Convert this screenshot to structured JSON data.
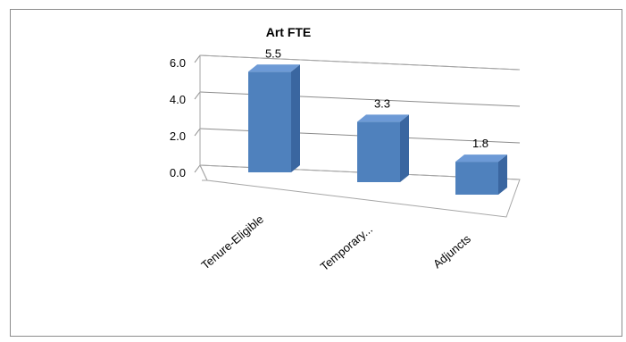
{
  "chart_data": {
    "type": "bar",
    "title": "Art FTE",
    "categories": [
      "Tenure-Eligible",
      "Temporary...",
      "Adjuncts"
    ],
    "values": [
      5.5,
      3.3,
      1.8
    ],
    "ylim": [
      0,
      6
    ],
    "yticks": [
      "0.0",
      "2.0",
      "4.0",
      "6.0"
    ],
    "data_labels": [
      "5.5",
      "3.3",
      "1.8"
    ],
    "grid": true,
    "legend": "none",
    "bar_color": "#4f81bd",
    "bar_side_color": "#3a66a0",
    "bar_top_color": "#6d9ad6"
  }
}
